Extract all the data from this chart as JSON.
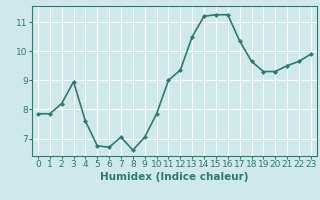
{
  "x": [
    0,
    1,
    2,
    3,
    4,
    5,
    6,
    7,
    8,
    9,
    10,
    11,
    12,
    13,
    14,
    15,
    16,
    17,
    18,
    19,
    20,
    21,
    22,
    23
  ],
  "y": [
    7.85,
    7.85,
    8.2,
    8.95,
    7.6,
    6.75,
    6.7,
    7.05,
    6.6,
    7.05,
    7.85,
    9.0,
    9.35,
    10.5,
    11.2,
    11.25,
    11.25,
    10.35,
    9.65,
    9.3,
    9.3,
    9.5,
    9.65,
    9.9
  ],
  "line_color": "#2d7a6e",
  "marker": "D",
  "marker_size": 2,
  "line_width": 1.2,
  "bg_color": "#cfe9ea",
  "grid_color": "#ffffff",
  "xlabel": "Humidex (Indice chaleur)",
  "xlabel_fontsize": 7.5,
  "yticks": [
    7,
    8,
    9,
    10,
    11
  ],
  "xticks": [
    0,
    1,
    2,
    3,
    4,
    5,
    6,
    7,
    8,
    9,
    10,
    11,
    12,
    13,
    14,
    15,
    16,
    17,
    18,
    19,
    20,
    21,
    22,
    23
  ],
  "ylim": [
    6.4,
    11.55
  ],
  "xlim": [
    -0.5,
    23.5
  ],
  "tick_fontsize": 6.5,
  "tick_color": "#2d7a6e",
  "spine_color": "#2d7a6e"
}
